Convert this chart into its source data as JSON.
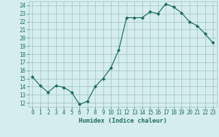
{
  "x": [
    0,
    1,
    2,
    3,
    4,
    5,
    6,
    7,
    8,
    9,
    10,
    11,
    12,
    13,
    14,
    15,
    16,
    17,
    18,
    19,
    20,
    21,
    22,
    23
  ],
  "y": [
    15.2,
    14.1,
    13.3,
    14.1,
    13.9,
    13.3,
    11.8,
    12.2,
    14.0,
    15.0,
    16.3,
    18.5,
    22.5,
    22.5,
    22.5,
    23.2,
    23.0,
    24.2,
    23.8,
    23.1,
    22.0,
    21.5,
    20.5,
    19.4
  ],
  "line_color": "#1a6b5e",
  "marker": "D",
  "markersize": 2.2,
  "linewidth": 0.9,
  "bg_color": "#d5eded",
  "grid_color": "#9bbfbf",
  "xlabel": "Humidex (Indice chaleur)",
  "xlim": [
    -0.5,
    23.5
  ],
  "ylim": [
    11.5,
    24.5
  ],
  "yticks": [
    12,
    13,
    14,
    15,
    16,
    17,
    18,
    19,
    20,
    21,
    22,
    23,
    24
  ],
  "xticks": [
    0,
    1,
    2,
    3,
    4,
    5,
    6,
    7,
    8,
    9,
    10,
    11,
    12,
    13,
    14,
    15,
    16,
    17,
    18,
    19,
    20,
    21,
    22,
    23
  ],
  "tick_fontsize": 5.5,
  "xlabel_fontsize": 6.5,
  "xlabel_bold": true
}
